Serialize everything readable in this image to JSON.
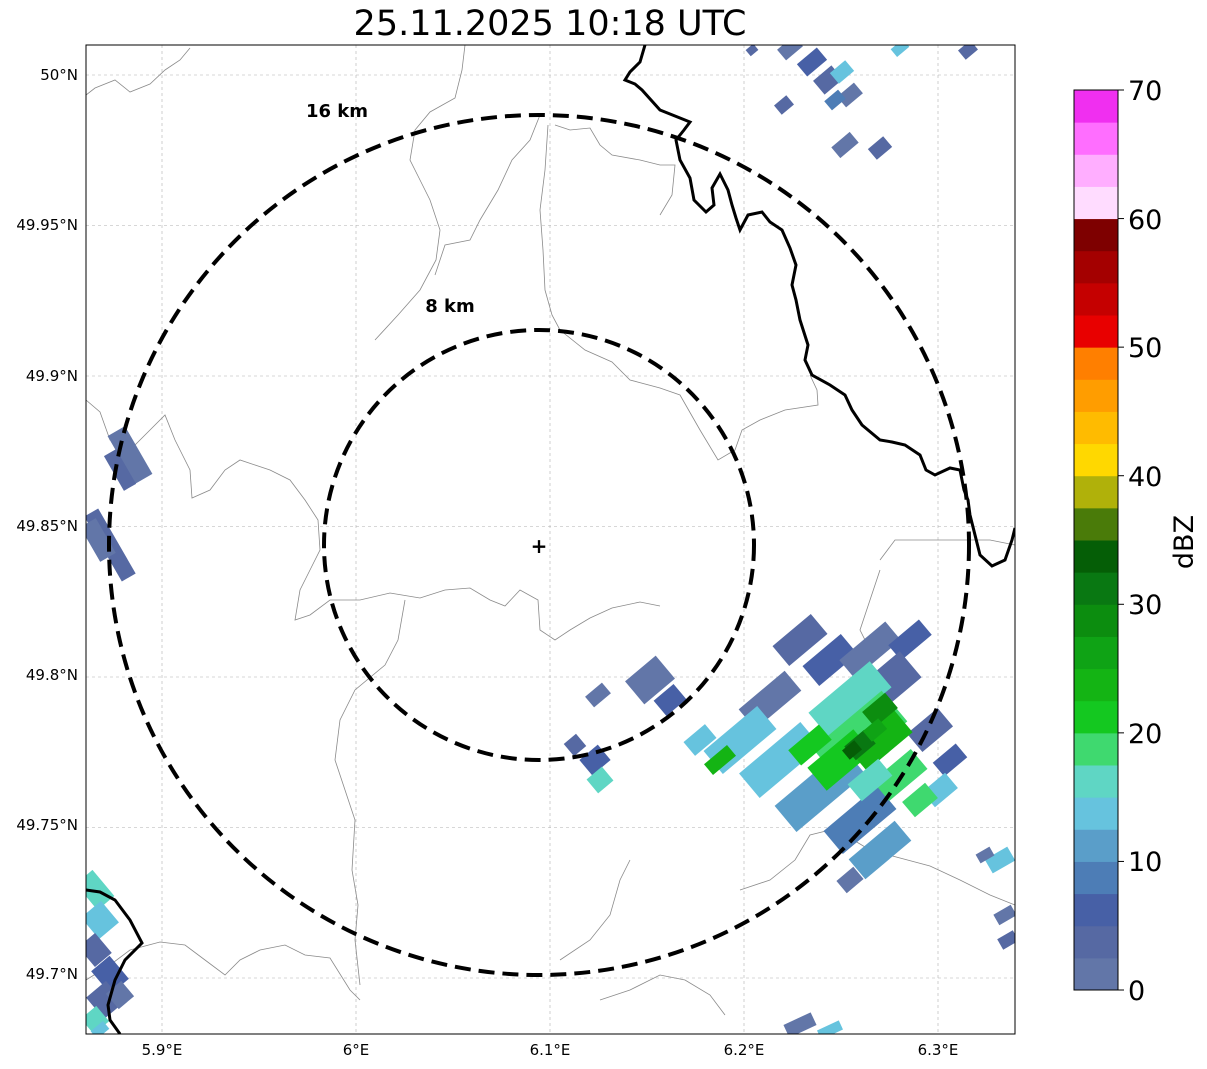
{
  "title": "25.11.2025 10:18 UTC",
  "map": {
    "lon_ticks": [
      {
        "value": 5.9,
        "label": "5.9°E"
      },
      {
        "value": 6.0,
        "label": "6°E"
      },
      {
        "value": 6.1,
        "label": "6.1°E"
      },
      {
        "value": 6.2,
        "label": "6.2°E"
      },
      {
        "value": 6.3,
        "label": "6.3°E"
      }
    ],
    "lat_ticks": [
      {
        "value": 50.0,
        "label": "50°N"
      },
      {
        "value": 49.95,
        "label": "49.95°N"
      },
      {
        "value": 49.9,
        "label": "49.9°N"
      },
      {
        "value": 49.85,
        "label": "49.85°N"
      },
      {
        "value": 49.8,
        "label": "49.8°N"
      },
      {
        "value": 49.75,
        "label": "49.75°N"
      },
      {
        "value": 49.7,
        "label": "49.7°N"
      }
    ],
    "center_marker": "+",
    "range_rings": [
      {
        "label": "8 km"
      },
      {
        "label": "16 km"
      }
    ]
  },
  "colorbar": {
    "title": "dBZ",
    "tick_labels": [
      "0",
      "10",
      "20",
      "30",
      "40",
      "50",
      "60",
      "70"
    ],
    "colors": [
      "#6276a8",
      "#5669a3",
      "#4760a6",
      "#4d7db6",
      "#5a9ec9",
      "#66c3de",
      "#5fd6c4",
      "#3fd96f",
      "#14c820",
      "#14b414",
      "#0fa315",
      "#0c8d0f",
      "#097812",
      "#055e06",
      "#4a7b09",
      "#b0b10a",
      "#ffd800",
      "#ffbb00",
      "#ff9d00",
      "#ff7f00",
      "#e80000",
      "#c50000",
      "#a40000",
      "#7e0000",
      "#ffdcff",
      "#ffaeff",
      "#ff6eff",
      "#f02ff0"
    ]
  }
}
